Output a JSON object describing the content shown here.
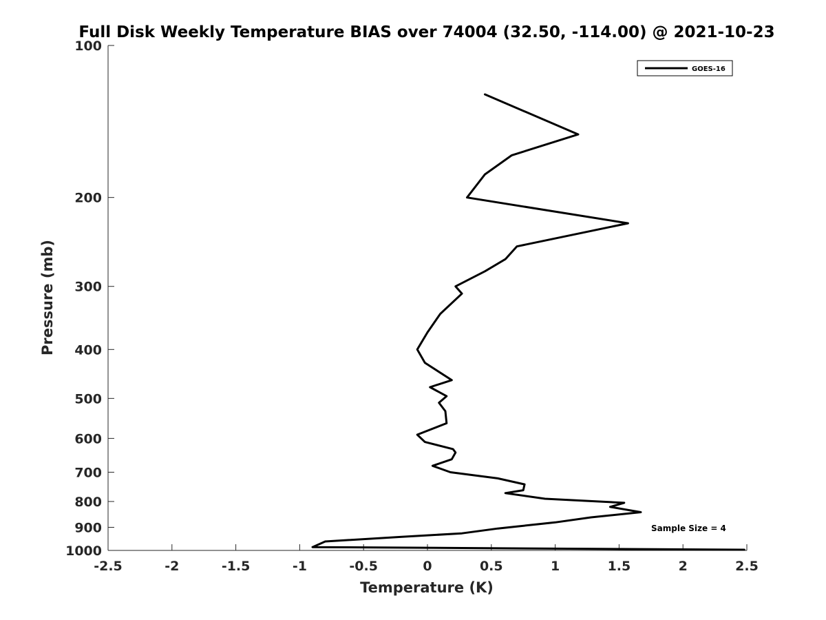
{
  "chart_data": {
    "type": "line",
    "title": "Full Disk Weekly Temperature BIAS over 74004 (32.50, -114.00) @ 2021-10-23",
    "xlabel": "Temperature (K)",
    "ylabel": "Pressure (mb)",
    "xlim": [
      -2.5,
      2.5
    ],
    "ylim": [
      100,
      1000
    ],
    "y_scale": "log",
    "y_reversed": true,
    "grid": false,
    "legend_position": "top-right",
    "x_ticks": [
      "-2.5",
      "-2",
      "-1.5",
      "-1",
      "-0.5",
      "0",
      "0.5",
      "1",
      "1.5",
      "2",
      "2.5"
    ],
    "x_tick_values": [
      -2.5,
      -2,
      -1.5,
      -1,
      -0.5,
      0,
      0.5,
      1,
      1.5,
      2,
      2.5
    ],
    "y_ticks": [
      "100",
      "200",
      "300",
      "400",
      "500",
      "600",
      "700",
      "800",
      "900",
      "1000"
    ],
    "y_tick_values": [
      100,
      200,
      300,
      400,
      500,
      600,
      700,
      800,
      900,
      1000
    ],
    "series": [
      {
        "name": "GOES-16",
        "color": "#000000",
        "points": [
          {
            "x": 0.45,
            "y": 125
          },
          {
            "x": 1.18,
            "y": 150
          },
          {
            "x": 0.66,
            "y": 165
          },
          {
            "x": 0.45,
            "y": 180
          },
          {
            "x": 0.31,
            "y": 200
          },
          {
            "x": 1.57,
            "y": 225
          },
          {
            "x": 0.7,
            "y": 250
          },
          {
            "x": 0.61,
            "y": 265
          },
          {
            "x": 0.45,
            "y": 280
          },
          {
            "x": 0.22,
            "y": 300
          },
          {
            "x": 0.27,
            "y": 310
          },
          {
            "x": 0.1,
            "y": 340
          },
          {
            "x": 0.0,
            "y": 370
          },
          {
            "x": -0.08,
            "y": 400
          },
          {
            "x": -0.02,
            "y": 425
          },
          {
            "x": 0.19,
            "y": 460
          },
          {
            "x": 0.02,
            "y": 475
          },
          {
            "x": 0.15,
            "y": 495
          },
          {
            "x": 0.09,
            "y": 510
          },
          {
            "x": 0.14,
            "y": 530
          },
          {
            "x": 0.15,
            "y": 560
          },
          {
            "x": -0.08,
            "y": 590
          },
          {
            "x": -0.02,
            "y": 610
          },
          {
            "x": 0.2,
            "y": 630
          },
          {
            "x": 0.22,
            "y": 640
          },
          {
            "x": 0.19,
            "y": 660
          },
          {
            "x": 0.04,
            "y": 680
          },
          {
            "x": 0.18,
            "y": 700
          },
          {
            "x": 0.55,
            "y": 720
          },
          {
            "x": 0.76,
            "y": 740
          },
          {
            "x": 0.75,
            "y": 760
          },
          {
            "x": 0.61,
            "y": 770
          },
          {
            "x": 0.92,
            "y": 790
          },
          {
            "x": 1.54,
            "y": 805
          },
          {
            "x": 1.43,
            "y": 820
          },
          {
            "x": 1.67,
            "y": 840
          },
          {
            "x": 1.28,
            "y": 860
          },
          {
            "x": 1.0,
            "y": 880
          },
          {
            "x": 0.55,
            "y": 905
          },
          {
            "x": 0.27,
            "y": 925
          },
          {
            "x": -0.2,
            "y": 940
          },
          {
            "x": -0.8,
            "y": 960
          },
          {
            "x": -0.9,
            "y": 985
          },
          {
            "x": 2.48,
            "y": 997
          }
        ]
      }
    ],
    "annotation": "Sample Size = 4"
  }
}
